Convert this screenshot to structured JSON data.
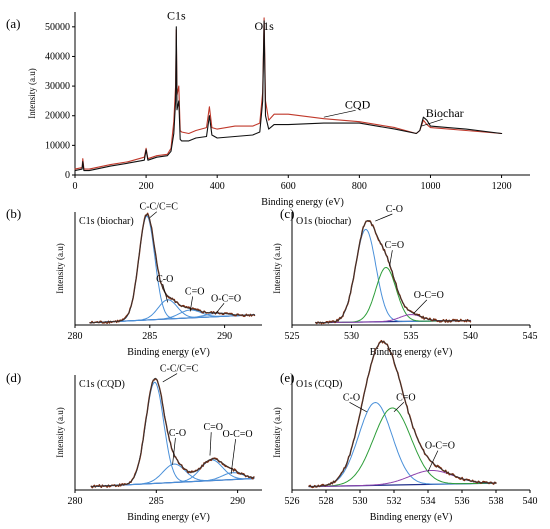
{
  "chart_data": [
    {
      "id": "a",
      "type": "line",
      "panel_label": "(a)",
      "xlabel": "Binding energy (eV)",
      "ylabel": "Intensity (a.u)",
      "xlim": [
        0,
        1280
      ],
      "ylim": [
        0,
        55000
      ],
      "xticks": [
        0,
        200,
        400,
        600,
        800,
        1000,
        1200
      ],
      "yticks": [
        0,
        10000,
        20000,
        30000,
        40000,
        50000
      ],
      "annotations": [
        {
          "text": "C1s",
          "x": 285,
          "y": 52500
        },
        {
          "text": "O1s",
          "x": 532,
          "y": 49000
        },
        {
          "text": "CQD",
          "x": 795,
          "y": 22500,
          "target": [
            700,
            19500
          ]
        },
        {
          "text": "Biochar",
          "x": 1040,
          "y": 19500,
          "target": [
            975,
            16500
          ]
        }
      ],
      "series": [
        {
          "name": "CQD",
          "color": "#c0392b",
          "x": [
            0,
            20,
            22,
            25,
            40,
            100,
            150,
            195,
            200,
            205,
            230,
            260,
            270,
            278,
            283,
            285,
            287,
            292,
            296,
            300,
            320,
            340,
            370,
            378,
            385,
            400,
            450,
            500,
            520,
            528,
            532,
            536,
            545,
            560,
            600,
            700,
            800,
            900,
            960,
            970,
            980,
            990,
            1000,
            1100,
            1200
          ],
          "y": [
            2000,
            2500,
            5500,
            2000,
            2000,
            3500,
            4500,
            6000,
            9000,
            5500,
            6500,
            7000,
            9000,
            18000,
            30000,
            49000,
            27000,
            30000,
            15000,
            14500,
            14000,
            15000,
            16000,
            23000,
            16000,
            15500,
            16500,
            16500,
            17500,
            28000,
            53000,
            25000,
            18500,
            20500,
            20500,
            19000,
            18000,
            16000,
            14000,
            15000,
            18500,
            17000,
            16000,
            15000,
            14000
          ]
        },
        {
          "name": "Biochar",
          "color": "#111111",
          "x": [
            0,
            20,
            22,
            25,
            40,
            100,
            150,
            195,
            200,
            205,
            230,
            260,
            270,
            278,
            283,
            285,
            287,
            292,
            296,
            300,
            320,
            340,
            370,
            378,
            385,
            400,
            450,
            500,
            520,
            528,
            532,
            536,
            545,
            560,
            600,
            700,
            800,
            900,
            960,
            970,
            980,
            990,
            1000,
            1100,
            1200
          ],
          "y": [
            1500,
            2000,
            4500,
            1500,
            1500,
            3000,
            4000,
            5000,
            8500,
            5000,
            6000,
            6500,
            8000,
            14000,
            25000,
            50000,
            22000,
            25000,
            12000,
            11500,
            11500,
            12500,
            13000,
            20000,
            13500,
            12500,
            13000,
            13500,
            14500,
            25000,
            52000,
            20000,
            15500,
            17000,
            17000,
            17500,
            17500,
            15500,
            14000,
            15000,
            19500,
            18500,
            16500,
            15500,
            14000
          ]
        }
      ]
    },
    {
      "id": "b",
      "type": "line",
      "panel_label": "(b)",
      "title": "C1s (biochar)",
      "xlabel": "Binding energy (eV)",
      "ylabel": "Intensity (a.u)",
      "xlim": [
        280,
        292.5
      ],
      "ylim": [
        0,
        100
      ],
      "xticks": [
        280,
        285,
        290
      ],
      "yticks": [],
      "baseline": [
        [
          281,
          2
        ],
        [
          292,
          9
        ]
      ],
      "peaks": [
        {
          "name": "C-C/C=C",
          "center": 284.8,
          "fwhm": 1.25,
          "height": 92,
          "color": "#4a90d9"
        },
        {
          "name": "C-O",
          "center": 286.2,
          "fwhm": 1.5,
          "height": 17,
          "color": "#4a90d9"
        },
        {
          "name": "C=O",
          "center": 287.7,
          "fwhm": 1.7,
          "height": 7,
          "color": "#4a90d9"
        },
        {
          "name": "O-C=O",
          "center": 289.5,
          "fwhm": 1.8,
          "height": 3,
          "color": "#4a90d9"
        }
      ],
      "annotations": [
        {
          "text": "C-C/C=C",
          "x": 285.6,
          "y": 102,
          "target": [
            285.0,
            95
          ]
        },
        {
          "text": "C-O",
          "x": 286.0,
          "y": 38,
          "target": [
            286.2,
            20
          ]
        },
        {
          "text": "C=O",
          "x": 288.0,
          "y": 27,
          "target": [
            287.7,
            12
          ]
        },
        {
          "text": "O-C=O",
          "x": 290.1,
          "y": 21,
          "target": [
            289.4,
            10
          ]
        }
      ]
    },
    {
      "id": "c",
      "type": "line",
      "panel_label": "(c)",
      "title": "O1s (biochar)",
      "xlabel": "Binding energy (eV)",
      "ylabel": "Intensity (a.u)",
      "xlim": [
        525,
        545
      ],
      "ylim": [
        0,
        100
      ],
      "xticks": [
        525,
        530,
        535,
        540,
        545
      ],
      "yticks": [],
      "baseline": [
        [
          527,
          2
        ],
        [
          540,
          4
        ]
      ],
      "peaks": [
        {
          "name": "C-O",
          "center": 531.2,
          "fwhm": 2.0,
          "height": 82,
          "color": "#4a90d9"
        },
        {
          "name": "C=O",
          "center": 532.9,
          "fwhm": 2.0,
          "height": 48,
          "color": "#2e9e3a"
        },
        {
          "name": "O-C=O",
          "center": 535.0,
          "fwhm": 2.2,
          "height": 6,
          "color": "#8e44ad"
        }
      ],
      "annotations": [
        {
          "text": "C-O",
          "x": 533.6,
          "y": 100,
          "target": [
            532.0,
            92
          ]
        },
        {
          "text": "C=O",
          "x": 533.6,
          "y": 68,
          "target": [
            533.2,
            52
          ]
        },
        {
          "text": "O-C=O",
          "x": 536.5,
          "y": 24,
          "target": [
            535.2,
            10
          ]
        }
      ]
    },
    {
      "id": "d",
      "type": "line",
      "panel_label": "(d)",
      "title": "C1s (CQD)",
      "xlabel": "Binding energy (eV)",
      "ylabel": "Intensity (a.u)",
      "xlim": [
        280,
        291.5
      ],
      "ylim": [
        0,
        100
      ],
      "xticks": [
        280,
        285,
        290
      ],
      "yticks": [],
      "baseline": [
        [
          281,
          3
        ],
        [
          291,
          10
        ]
      ],
      "peaks": [
        {
          "name": "C-C/C=C",
          "center": 284.9,
          "fwhm": 1.3,
          "height": 88,
          "color": "#4a90d9"
        },
        {
          "name": "C-O",
          "center": 286.1,
          "fwhm": 1.6,
          "height": 16,
          "color": "#4a90d9"
        },
        {
          "name": "C=O",
          "center": 288.4,
          "fwhm": 1.6,
          "height": 18,
          "color": "#4a90d9"
        },
        {
          "name": "O-C=O",
          "center": 289.7,
          "fwhm": 1.5,
          "height": 6,
          "color": "#4a90d9"
        }
      ],
      "annotations": [
        {
          "text": "C-C/C=C",
          "x": 286.4,
          "y": 103,
          "target": [
            285.4,
            94
          ]
        },
        {
          "text": "C-O",
          "x": 286.3,
          "y": 47,
          "target": [
            286.0,
            22
          ]
        },
        {
          "text": "C=O",
          "x": 288.5,
          "y": 52,
          "target": [
            288.3,
            30
          ]
        },
        {
          "text": "O-C=O",
          "x": 290.0,
          "y": 46,
          "target": [
            289.6,
            14
          ]
        }
      ]
    },
    {
      "id": "e",
      "type": "line",
      "panel_label": "(e)",
      "title": "O1s (CQD)",
      "xlabel": "Binding energy (eV)",
      "ylabel": "Intensity (a.u)",
      "xlim": [
        526,
        540
      ],
      "ylim": [
        0,
        100
      ],
      "xticks": [
        526,
        528,
        530,
        532,
        534,
        536,
        538,
        540
      ],
      "yticks": [],
      "baseline": [
        [
          527,
          3
        ],
        [
          538,
          6
        ]
      ],
      "peaks": [
        {
          "name": "C-O",
          "center": 530.9,
          "fwhm": 2.3,
          "height": 72,
          "color": "#4a90d9"
        },
        {
          "name": "C=O",
          "center": 531.9,
          "fwhm": 2.6,
          "height": 67,
          "color": "#2e9e3a"
        },
        {
          "name": "O-C=O",
          "center": 534.2,
          "fwhm": 3.0,
          "height": 12,
          "color": "#8e44ad"
        }
      ],
      "annotations": [
        {
          "text": "C-O",
          "x": 529.5,
          "y": 78,
          "target": [
            530.4,
            68
          ]
        },
        {
          "text": "C=O",
          "x": 532.7,
          "y": 78,
          "target": [
            532.0,
            68
          ]
        },
        {
          "text": "O-C=O",
          "x": 534.7,
          "y": 36,
          "target": [
            534.0,
            16
          ]
        }
      ]
    }
  ]
}
